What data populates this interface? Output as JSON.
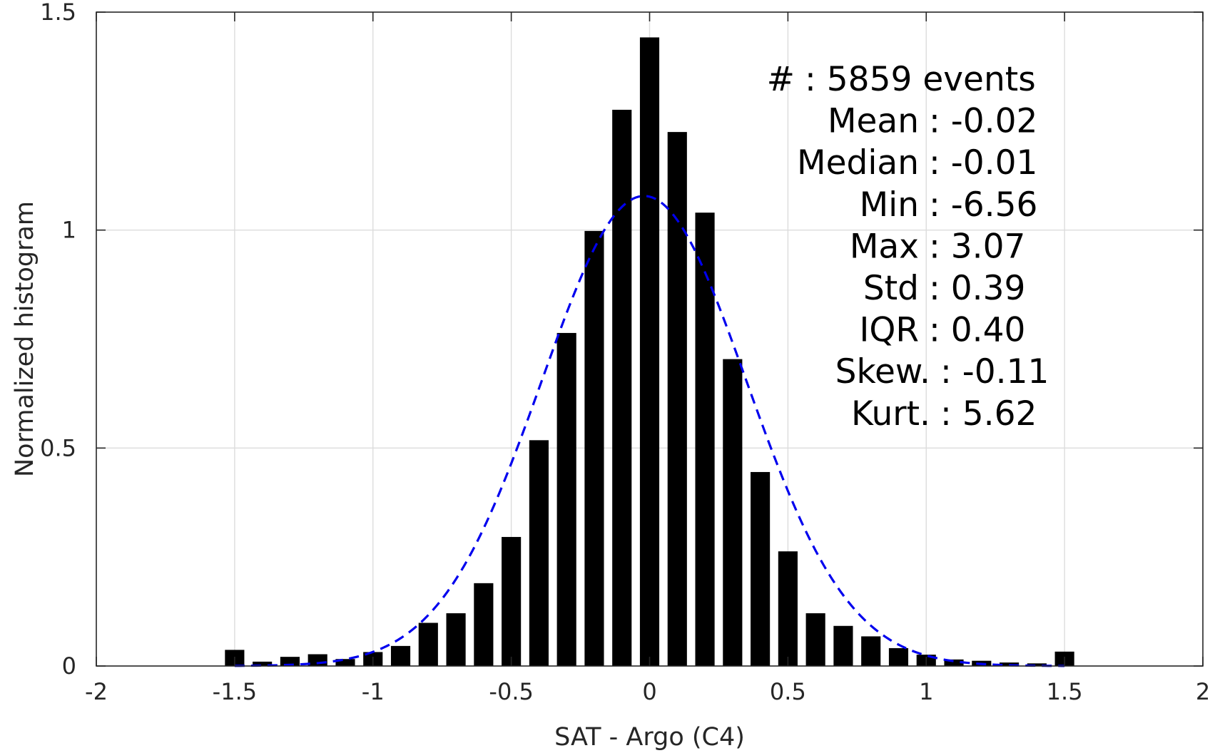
{
  "chart_data": {
    "type": "bar",
    "xlabel": "SAT - Argo (C4)",
    "ylabel": "Normalized histogram",
    "xlim": [
      -2,
      2
    ],
    "ylim": [
      0,
      1.5
    ],
    "xticks": [
      -2,
      -1.5,
      -1,
      -0.5,
      0,
      0.5,
      1,
      1.5,
      2
    ],
    "xtick_labels": [
      "-2",
      "-1.5",
      "-1",
      "-0.5",
      "0",
      "0.5",
      "1",
      "1.5",
      "2"
    ],
    "yticks": [
      0,
      0.5,
      1,
      1.5
    ],
    "ytick_labels": [
      "0",
      "0.5",
      "1",
      "1.5"
    ],
    "grid": true,
    "bar_color": "#000000",
    "bin_width": 0.1,
    "x": [
      -1.5,
      -1.4,
      -1.3,
      -1.2,
      -1.1,
      -1.0,
      -0.9,
      -0.8,
      -0.7,
      -0.6,
      -0.5,
      -0.4,
      -0.3,
      -0.2,
      -0.1,
      0.0,
      0.1,
      0.2,
      0.3,
      0.4,
      0.5,
      0.6,
      0.7,
      0.8,
      0.9,
      1.0,
      1.1,
      1.2,
      1.3,
      1.4,
      1.5
    ],
    "values": [
      0.037,
      0.01,
      0.021,
      0.027,
      0.016,
      0.032,
      0.046,
      0.099,
      0.121,
      0.19,
      0.296,
      0.518,
      0.764,
      0.998,
      1.276,
      1.442,
      1.225,
      1.04,
      0.704,
      0.445,
      0.263,
      0.121,
      0.092,
      0.068,
      0.041,
      0.026,
      0.015,
      0.012,
      0.008,
      0.006,
      0.033
    ],
    "fit_curve": {
      "type": "normal",
      "style": "dashed",
      "color": "#0000ee",
      "mean": -0.02,
      "std": 0.37,
      "x_range": [
        -1.5,
        1.5
      ]
    },
    "annotation": {
      "lines": [
        {
          "label": "#",
          "value": ": 5859 events"
        },
        {
          "label": "Mean",
          "value": ": -0.02"
        },
        {
          "label": "Median",
          "value": ": -0.01"
        },
        {
          "label": "Min",
          "value": ": -6.56"
        },
        {
          "label": "Max",
          "value": ": 3.07"
        },
        {
          "label": "Std",
          "value": ": 0.39"
        },
        {
          "label": "IQR",
          "value": ": 0.40"
        },
        {
          "label": "Skew.",
          "value": ": -0.11"
        },
        {
          "label": "Kurt.",
          "value": ": 5.62"
        }
      ]
    }
  }
}
